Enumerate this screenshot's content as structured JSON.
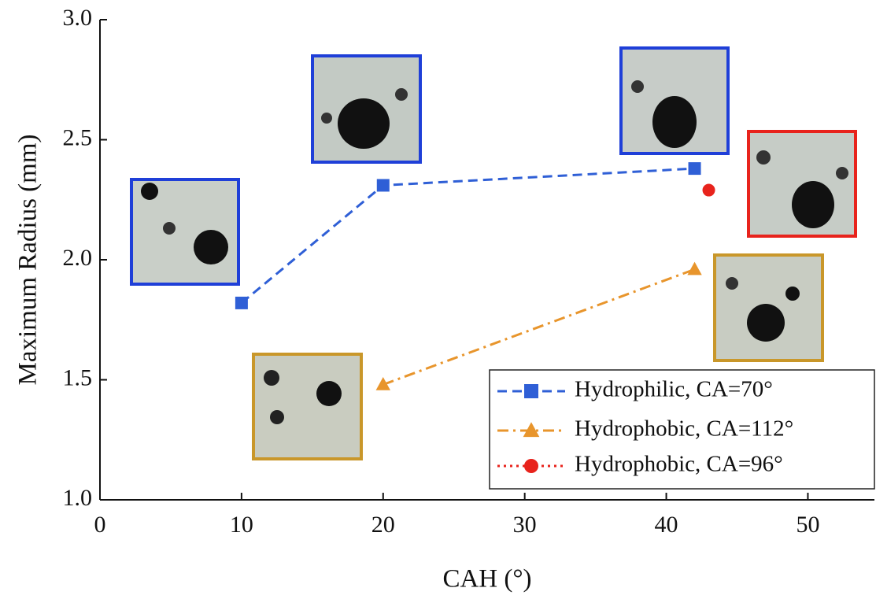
{
  "chart_data": {
    "type": "line",
    "x_label": "CAH (°)",
    "y_label": "Maximum Radius (mm)",
    "xlim": [
      0,
      54.7
    ],
    "ylim": [
      1.0,
      3.0
    ],
    "xticks": [
      0,
      10,
      20,
      30,
      40,
      50
    ],
    "yticks": [
      {
        "value": 1.0,
        "label": "1.0"
      },
      1.5,
      {
        "value": 2.0,
        "label": "2.0"
      },
      2.5,
      {
        "value": 3.0,
        "label": "3.0"
      }
    ],
    "legend": "lower right",
    "series": [
      {
        "name": "Hydrophilic, CA=70°",
        "color": "#2f5fd6",
        "linestyle": "dashed",
        "marker": "square",
        "x": [
          10,
          20,
          42
        ],
        "values": [
          1.82,
          2.31,
          2.38
        ]
      },
      {
        "name": "Hydrophobic, CA=112°",
        "color": "#e8952c",
        "linestyle": "dashdot",
        "marker": "triangle",
        "x": [
          20,
          42
        ],
        "values": [
          1.48,
          1.96
        ]
      },
      {
        "name": "Hydrophobic, CA=96°",
        "color": "#e8231c",
        "linestyle": "dotted",
        "marker": "circle",
        "x": [
          43
        ],
        "values": [
          2.29
        ]
      }
    ]
  }
}
